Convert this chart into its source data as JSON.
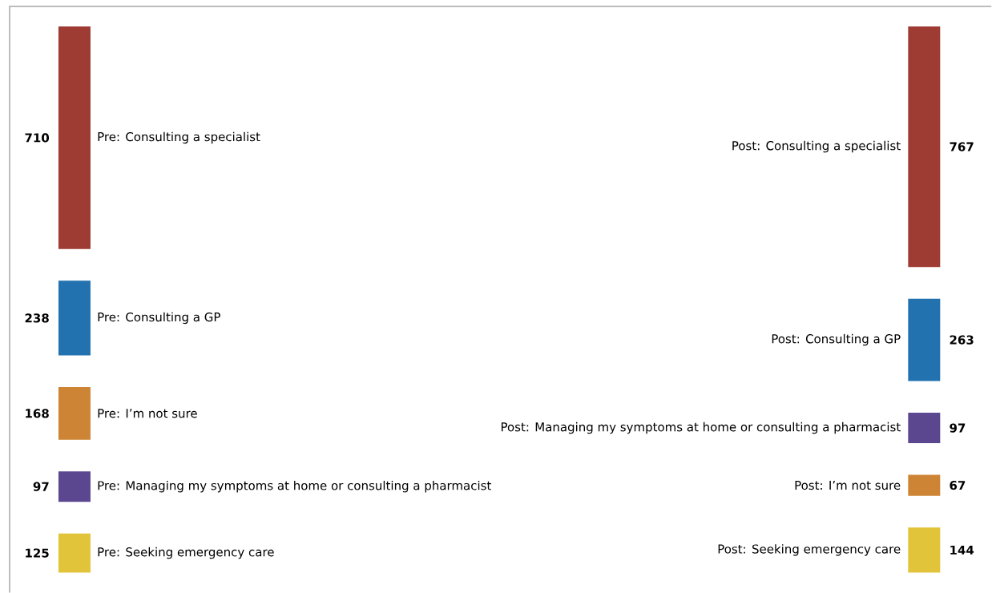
{
  "chart_data": [
    {
      "type": "other",
      "categories": [
        "Pre: Consulting a specialist",
        "Pre: Consulting a GP",
        "Pre: I’m not sure",
        "Pre: Managing my symptoms at home or consulting a pharmacist",
        "Pre: Seeking emergency care"
      ],
      "values": [
        710,
        238,
        168,
        97,
        125
      ],
      "colors": [
        "#9e3b32",
        "#2372b0",
        "#cd8435",
        "#5b4690",
        "#e2c43a"
      ],
      "data_labels": true
    },
    {
      "type": "other",
      "categories": [
        "Post: Consulting a specialist",
        "Post: Consulting a GP",
        "Post: Managing my symptoms at home or consulting a pharmacist",
        "Post: I’m not sure",
        "Post: Seeking emergency care"
      ],
      "values": [
        767,
        263,
        97,
        67,
        144
      ],
      "colors": [
        "#9e3b32",
        "#2372b0",
        "#5b4690",
        "#cd8435",
        "#e2c43a"
      ],
      "data_labels": true
    }
  ]
}
